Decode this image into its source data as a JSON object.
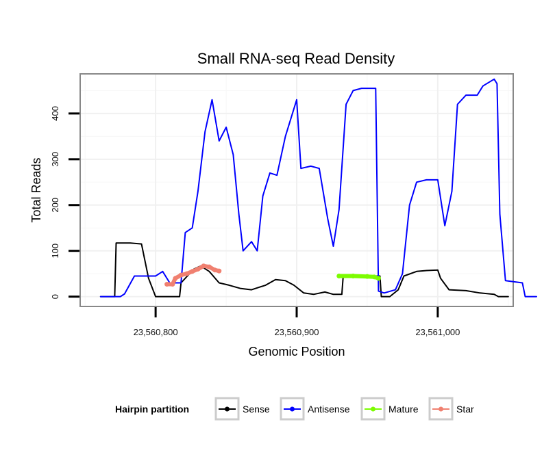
{
  "chart_data": {
    "type": "line",
    "title": "Small RNA-seq Read Density",
    "xlabel": "Genomic Position",
    "ylabel": "Total Reads",
    "xlim": [
      23560747,
      23561053
    ],
    "ylim": [
      -20,
      485
    ],
    "x_ticks": [
      23560800,
      23560900,
      23561000
    ],
    "x_tick_labels": [
      "23,560,800",
      "23,560,900",
      "23,561,000"
    ],
    "y_ticks": [
      0,
      100,
      200,
      300,
      400
    ],
    "y_tick_labels": [
      "0",
      "100",
      "200",
      "300",
      "400"
    ],
    "grid": true,
    "legend": {
      "title": "Hairpin partition",
      "position": "bottom",
      "entries": [
        "Sense",
        "Antisense",
        "Mature",
        "Star"
      ]
    },
    "series": [
      {
        "name": "Sense",
        "color": "#000000",
        "points": [
          [
            23560761,
            0
          ],
          [
            23560771,
            0
          ],
          [
            23560772,
            117
          ],
          [
            23560782,
            117
          ],
          [
            23560790,
            115
          ],
          [
            23560795,
            40
          ],
          [
            23560800,
            0
          ],
          [
            23560817,
            0
          ],
          [
            23560818,
            30
          ],
          [
            23560827,
            60
          ],
          [
            23560832,
            67
          ],
          [
            23560838,
            55
          ],
          [
            23560845,
            30
          ],
          [
            23560852,
            25
          ],
          [
            23560860,
            18
          ],
          [
            23560868,
            15
          ],
          [
            23560873,
            20
          ],
          [
            23560878,
            25
          ],
          [
            23560885,
            37
          ],
          [
            23560892,
            35
          ],
          [
            23560898,
            25
          ],
          [
            23560905,
            8
          ],
          [
            23560912,
            5
          ],
          [
            23560920,
            10
          ],
          [
            23560926,
            5
          ],
          [
            23560932,
            5
          ],
          [
            23560933,
            45
          ],
          [
            23560959,
            45
          ],
          [
            23560960,
            0
          ],
          [
            23560966,
            0
          ],
          [
            23560972,
            15
          ],
          [
            23560976,
            45
          ],
          [
            23560985,
            55
          ],
          [
            23560992,
            57
          ],
          [
            23561000,
            58
          ],
          [
            23561002,
            40
          ],
          [
            23561008,
            15
          ],
          [
            23561020,
            13
          ],
          [
            23561030,
            8
          ],
          [
            23561040,
            5
          ],
          [
            23561043,
            0
          ],
          [
            23561050,
            0
          ]
        ]
      },
      {
        "name": "Antisense",
        "color": "#0000ff",
        "points": [
          [
            23560761,
            0
          ],
          [
            23560775,
            0
          ],
          [
            23560778,
            6
          ],
          [
            23560785,
            45
          ],
          [
            23560800,
            45
          ],
          [
            23560805,
            55
          ],
          [
            23560810,
            30
          ],
          [
            23560818,
            30
          ],
          [
            23560821,
            140
          ],
          [
            23560826,
            150
          ],
          [
            23560830,
            230
          ],
          [
            23560835,
            360
          ],
          [
            23560840,
            430
          ],
          [
            23560845,
            340
          ],
          [
            23560850,
            370
          ],
          [
            23560855,
            310
          ],
          [
            23560859,
            180
          ],
          [
            23560862,
            100
          ],
          [
            23560868,
            120
          ],
          [
            23560872,
            100
          ],
          [
            23560876,
            220
          ],
          [
            23560881,
            270
          ],
          [
            23560886,
            265
          ],
          [
            23560892,
            350
          ],
          [
            23560900,
            430
          ],
          [
            23560903,
            280
          ],
          [
            23560910,
            285
          ],
          [
            23560916,
            280
          ],
          [
            23560922,
            170
          ],
          [
            23560926,
            110
          ],
          [
            23560930,
            190
          ],
          [
            23560935,
            420
          ],
          [
            23560940,
            450
          ],
          [
            23560946,
            455
          ],
          [
            23560956,
            455
          ],
          [
            23560958,
            12
          ],
          [
            23560962,
            8
          ],
          [
            23560970,
            15
          ],
          [
            23560975,
            50
          ],
          [
            23560980,
            200
          ],
          [
            23560985,
            250
          ],
          [
            23560992,
            255
          ],
          [
            23561000,
            255
          ],
          [
            23561005,
            155
          ],
          [
            23561010,
            230
          ],
          [
            23561014,
            420
          ],
          [
            23561020,
            440
          ],
          [
            23561028,
            440
          ],
          [
            23561032,
            460
          ],
          [
            23561040,
            475
          ],
          [
            23561042,
            465
          ],
          [
            23561044,
            180
          ],
          [
            23561048,
            35
          ],
          [
            23561060,
            30
          ],
          [
            23561062,
            0
          ],
          [
            23561070,
            0
          ]
        ]
      },
      {
        "name": "Mature",
        "color": "#7cfc00",
        "points": [
          [
            23560930,
            45
          ],
          [
            23560940,
            45
          ],
          [
            23560950,
            44
          ],
          [
            23560955,
            43
          ],
          [
            23560958,
            40
          ]
        ]
      },
      {
        "name": "Star",
        "color": "#f08070",
        "points": [
          [
            23560808,
            27
          ],
          [
            23560812,
            27
          ],
          [
            23560814,
            40
          ],
          [
            23560818,
            47
          ],
          [
            23560822,
            50
          ],
          [
            23560826,
            55
          ],
          [
            23560830,
            60
          ],
          [
            23560834,
            67
          ],
          [
            23560838,
            65
          ],
          [
            23560842,
            58
          ],
          [
            23560845,
            56
          ]
        ]
      }
    ]
  }
}
